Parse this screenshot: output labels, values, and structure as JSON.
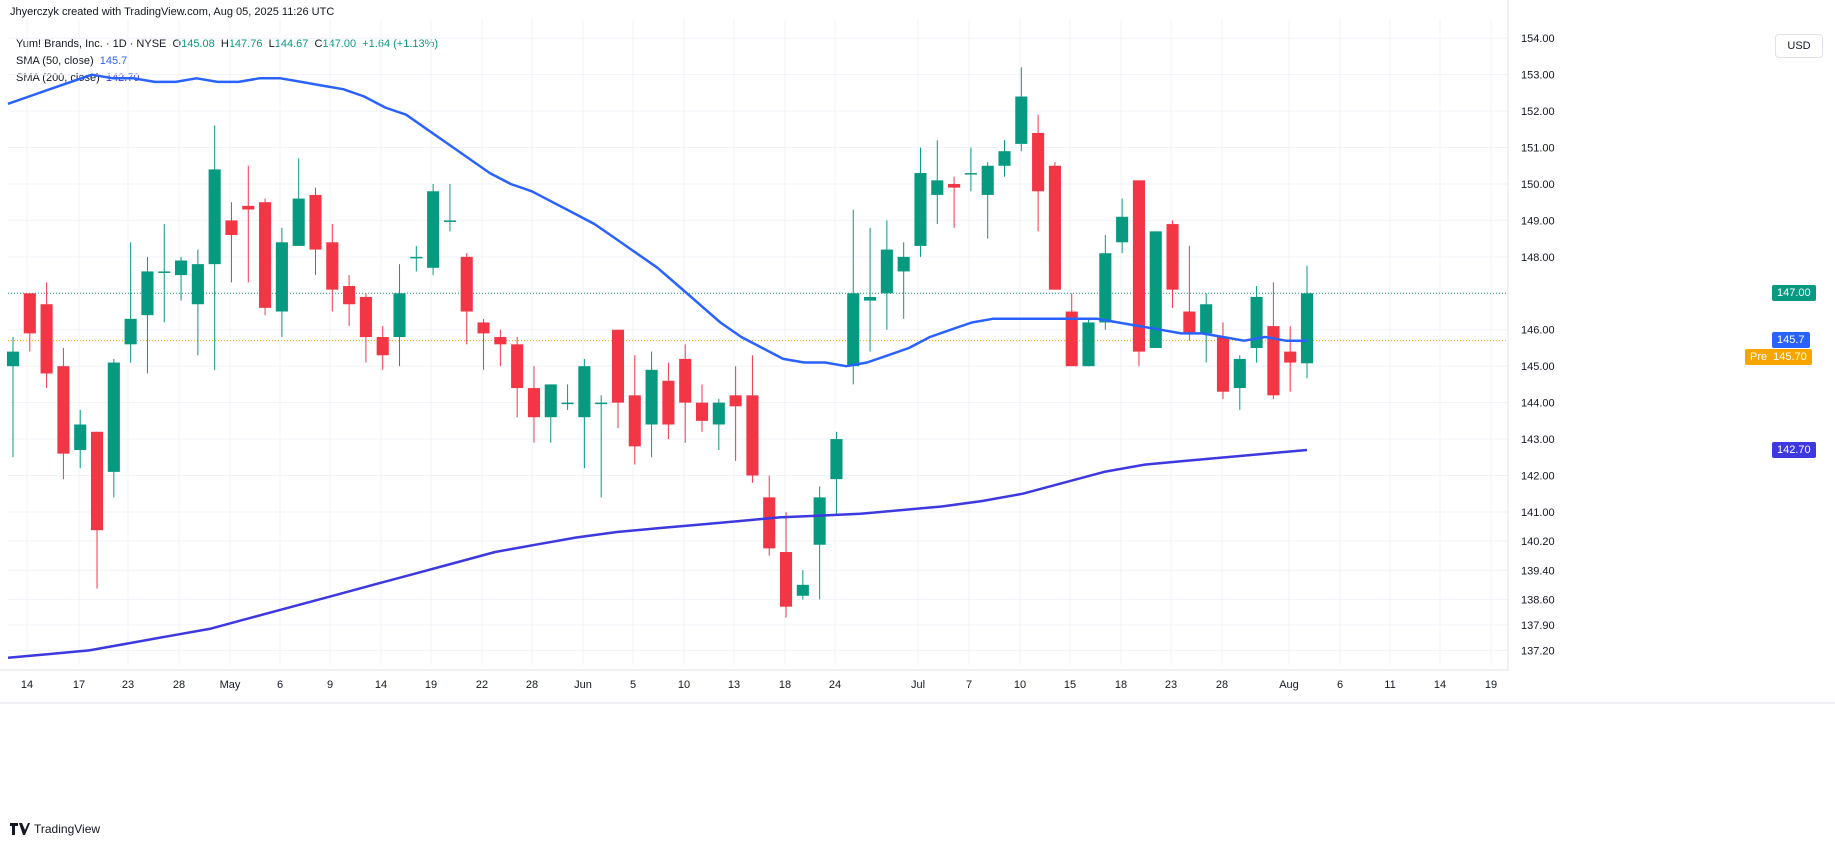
{
  "header": {
    "attribution": "Jhyerczyk created with TradingView.com, Aug 05, 2025 11:26 UTC"
  },
  "legend": {
    "symbol": "Yum! Brands, Inc. · 1D · NYSE",
    "o_label": "O",
    "o_value": "145.08",
    "h_label": "H",
    "h_value": "147.76",
    "l_label": "L",
    "l_value": "144.67",
    "c_label": "C",
    "c_value": "147.00",
    "change": "+1.64 (+1.13%)",
    "sma50_label": "SMA (50, close)",
    "sma50_value": "145.7",
    "sma200_label": "SMA (200, close)",
    "sma200_value": "142.70"
  },
  "currency_label": "USD",
  "footer": {
    "brand": "TradingView"
  },
  "colors": {
    "up": "#089981",
    "down": "#f23645",
    "sma50": "#2962ff",
    "sma200": "#3d38e0",
    "last_price": "#089981",
    "pre": "#f7a600"
  },
  "price_tags": {
    "last": "147.00",
    "sma50": "145.7",
    "pre_label": "Pre",
    "pre_value": "145.70",
    "sma200": "142.70"
  },
  "chart_data": {
    "type": "candlestick",
    "y_ticks": [
      154.0,
      153.0,
      152.0,
      151.0,
      150.0,
      149.0,
      148.0,
      146.0,
      145.0,
      144.0,
      143.0,
      142.0,
      141.0,
      140.2,
      139.4,
      138.6,
      137.9,
      137.2
    ],
    "x_ticks": [
      "14",
      "17",
      "23",
      "28",
      "May",
      "6",
      "9",
      "14",
      "19",
      "22",
      "28",
      "Jun",
      "5",
      "10",
      "13",
      "18",
      "24",
      "Jul",
      "7",
      "10",
      "15",
      "18",
      "23",
      "28",
      "Aug",
      "6",
      "11",
      "14",
      "19"
    ],
    "candles": [
      {
        "o": 145.0,
        "h": 145.8,
        "l": 142.5,
        "c": 145.4
      },
      {
        "o": 147.0,
        "h": 147.0,
        "l": 145.4,
        "c": 145.9
      },
      {
        "o": 146.7,
        "h": 147.3,
        "l": 144.4,
        "c": 144.8
      },
      {
        "o": 145.0,
        "h": 145.5,
        "l": 141.9,
        "c": 142.6
      },
      {
        "o": 142.7,
        "h": 143.8,
        "l": 142.2,
        "c": 143.4
      },
      {
        "o": 143.2,
        "h": 143.2,
        "l": 138.9,
        "c": 140.5
      },
      {
        "o": 142.1,
        "h": 145.2,
        "l": 141.4,
        "c": 145.1
      },
      {
        "o": 145.6,
        "h": 148.4,
        "l": 145.1,
        "c": 146.3
      },
      {
        "o": 146.4,
        "h": 148.0,
        "l": 144.8,
        "c": 147.6
      },
      {
        "o": 147.6,
        "h": 148.9,
        "l": 146.2,
        "c": 147.6
      },
      {
        "o": 147.5,
        "h": 148.0,
        "l": 146.8,
        "c": 147.9
      },
      {
        "o": 146.7,
        "h": 148.2,
        "l": 145.3,
        "c": 147.8
      },
      {
        "o": 147.8,
        "h": 151.6,
        "l": 144.9,
        "c": 150.4
      },
      {
        "o": 149.0,
        "h": 149.5,
        "l": 147.3,
        "c": 148.6
      },
      {
        "o": 149.4,
        "h": 150.5,
        "l": 147.3,
        "c": 149.3
      },
      {
        "o": 149.5,
        "h": 149.6,
        "l": 146.4,
        "c": 146.6
      },
      {
        "o": 146.5,
        "h": 148.8,
        "l": 145.8,
        "c": 148.4
      },
      {
        "o": 148.3,
        "h": 150.7,
        "l": 148.4,
        "c": 149.6
      },
      {
        "o": 149.7,
        "h": 149.9,
        "l": 147.5,
        "c": 148.2
      },
      {
        "o": 148.4,
        "h": 148.9,
        "l": 146.5,
        "c": 147.1
      },
      {
        "o": 147.2,
        "h": 147.5,
        "l": 146.1,
        "c": 146.7
      },
      {
        "o": 146.9,
        "h": 147.0,
        "l": 145.1,
        "c": 145.8
      },
      {
        "o": 145.8,
        "h": 146.1,
        "l": 144.9,
        "c": 145.3
      },
      {
        "o": 145.8,
        "h": 147.8,
        "l": 145.0,
        "c": 147.0
      },
      {
        "o": 148.0,
        "h": 148.3,
        "l": 147.6,
        "c": 148.0
      },
      {
        "o": 147.7,
        "h": 150.0,
        "l": 147.5,
        "c": 149.8
      },
      {
        "o": 149.0,
        "h": 150.0,
        "l": 148.7,
        "c": 149.0
      },
      {
        "o": 148.0,
        "h": 148.1,
        "l": 145.6,
        "c": 146.5
      },
      {
        "o": 146.2,
        "h": 146.3,
        "l": 144.9,
        "c": 145.9
      },
      {
        "o": 145.8,
        "h": 146.0,
        "l": 145.0,
        "c": 145.6
      },
      {
        "o": 145.6,
        "h": 145.8,
        "l": 143.6,
        "c": 144.4
      },
      {
        "o": 144.4,
        "h": 145.0,
        "l": 142.9,
        "c": 143.6
      },
      {
        "o": 143.6,
        "h": 144.5,
        "l": 142.9,
        "c": 144.5
      },
      {
        "o": 144.0,
        "h": 144.5,
        "l": 143.8,
        "c": 144.0
      },
      {
        "o": 143.6,
        "h": 145.2,
        "l": 142.2,
        "c": 145.0
      },
      {
        "o": 144.0,
        "h": 144.2,
        "l": 141.4,
        "c": 144.0
      },
      {
        "o": 146.0,
        "h": 146.0,
        "l": 143.3,
        "c": 144.0
      },
      {
        "o": 144.2,
        "h": 145.3,
        "l": 142.3,
        "c": 142.8
      },
      {
        "o": 143.4,
        "h": 145.4,
        "l": 142.5,
        "c": 144.9
      },
      {
        "o": 144.6,
        "h": 145.1,
        "l": 143.0,
        "c": 143.4
      },
      {
        "o": 145.2,
        "h": 145.6,
        "l": 142.9,
        "c": 144.0
      },
      {
        "o": 144.0,
        "h": 144.5,
        "l": 143.2,
        "c": 143.5
      },
      {
        "o": 143.4,
        "h": 144.1,
        "l": 142.7,
        "c": 144.0
      },
      {
        "o": 144.2,
        "h": 145.0,
        "l": 142.4,
        "c": 143.9
      },
      {
        "o": 144.2,
        "h": 145.3,
        "l": 141.8,
        "c": 142.0
      },
      {
        "o": 141.4,
        "h": 142.0,
        "l": 139.8,
        "c": 140.0
      },
      {
        "o": 139.9,
        "h": 141.0,
        "l": 138.1,
        "c": 138.4
      },
      {
        "o": 138.7,
        "h": 139.4,
        "l": 138.6,
        "c": 139.0
      },
      {
        "o": 140.1,
        "h": 141.7,
        "l": 138.6,
        "c": 141.4
      },
      {
        "o": 141.9,
        "h": 143.2,
        "l": 140.9,
        "c": 143.0
      },
      {
        "o": 145.0,
        "h": 149.3,
        "l": 144.5,
        "c": 147.0
      },
      {
        "o": 146.8,
        "h": 148.8,
        "l": 145.4,
        "c": 146.9
      },
      {
        "o": 147.0,
        "h": 149.0,
        "l": 146.0,
        "c": 148.2
      },
      {
        "o": 147.6,
        "h": 148.4,
        "l": 146.3,
        "c": 148.0
      },
      {
        "o": 148.3,
        "h": 151.0,
        "l": 148.0,
        "c": 150.3
      },
      {
        "o": 149.7,
        "h": 151.2,
        "l": 148.9,
        "c": 150.1
      },
      {
        "o": 150.0,
        "h": 150.2,
        "l": 148.8,
        "c": 149.9
      },
      {
        "o": 150.3,
        "h": 151.0,
        "l": 149.8,
        "c": 150.3
      },
      {
        "o": 149.7,
        "h": 150.6,
        "l": 148.5,
        "c": 150.5
      },
      {
        "o": 150.5,
        "h": 151.2,
        "l": 150.2,
        "c": 150.9
      },
      {
        "o": 151.1,
        "h": 153.2,
        "l": 150.9,
        "c": 152.4
      },
      {
        "o": 151.4,
        "h": 151.9,
        "l": 148.7,
        "c": 149.8
      },
      {
        "o": 150.5,
        "h": 150.6,
        "l": 147.1,
        "c": 147.1
      },
      {
        "o": 146.5,
        "h": 147.0,
        "l": 145.0,
        "c": 145.0
      },
      {
        "o": 145.0,
        "h": 146.3,
        "l": 145.0,
        "c": 146.2
      },
      {
        "o": 146.2,
        "h": 148.6,
        "l": 146.0,
        "c": 148.1
      },
      {
        "o": 148.4,
        "h": 149.6,
        "l": 148.1,
        "c": 149.1
      },
      {
        "o": 150.1,
        "h": 150.1,
        "l": 145.0,
        "c": 145.4
      },
      {
        "o": 145.5,
        "h": 148.7,
        "l": 145.5,
        "c": 148.7
      },
      {
        "o": 148.9,
        "h": 149.0,
        "l": 146.6,
        "c": 147.1
      },
      {
        "o": 146.5,
        "h": 148.3,
        "l": 145.7,
        "c": 145.9
      },
      {
        "o": 145.9,
        "h": 147.0,
        "l": 145.1,
        "c": 146.7
      },
      {
        "o": 145.8,
        "h": 146.2,
        "l": 144.1,
        "c": 144.3
      },
      {
        "o": 144.4,
        "h": 145.3,
        "l": 143.8,
        "c": 145.2
      },
      {
        "o": 145.5,
        "h": 147.2,
        "l": 145.1,
        "c": 146.9
      },
      {
        "o": 146.1,
        "h": 147.3,
        "l": 144.1,
        "c": 144.2
      },
      {
        "o": 145.4,
        "h": 146.1,
        "l": 144.3,
        "c": 145.1
      },
      {
        "o": 145.08,
        "h": 147.76,
        "l": 144.67,
        "c": 147.0
      }
    ],
    "sma50": [
      152.2,
      152.4,
      152.6,
      152.8,
      153.0,
      152.9,
      152.9,
      152.8,
      152.8,
      152.9,
      152.8,
      152.8,
      152.9,
      152.9,
      152.8,
      152.7,
      152.6,
      152.4,
      152.1,
      151.9,
      151.5,
      151.1,
      150.7,
      150.3,
      150.0,
      149.8,
      149.5,
      149.2,
      148.9,
      148.5,
      148.1,
      147.7,
      147.2,
      146.7,
      146.2,
      145.8,
      145.5,
      145.2,
      145.1,
      145.1,
      145.0,
      145.1,
      145.3,
      145.5,
      145.8,
      146.0,
      146.2,
      146.3,
      146.3,
      146.3,
      146.3,
      146.3,
      146.3,
      146.2,
      146.1,
      146.0,
      145.9,
      145.9,
      145.8,
      145.7,
      145.8,
      145.7,
      145.7
    ],
    "sma200": [
      137.0,
      137.1,
      137.2,
      137.4,
      137.6,
      137.8,
      138.1,
      138.4,
      138.7,
      139.0,
      139.3,
      139.6,
      139.9,
      140.1,
      140.3,
      140.45,
      140.55,
      140.65,
      140.75,
      140.85,
      140.9,
      140.95,
      141.05,
      141.15,
      141.3,
      141.5,
      141.8,
      142.1,
      142.3,
      142.4,
      142.5,
      142.6,
      142.7
    ],
    "xlabel": "",
    "ylabel": ""
  }
}
